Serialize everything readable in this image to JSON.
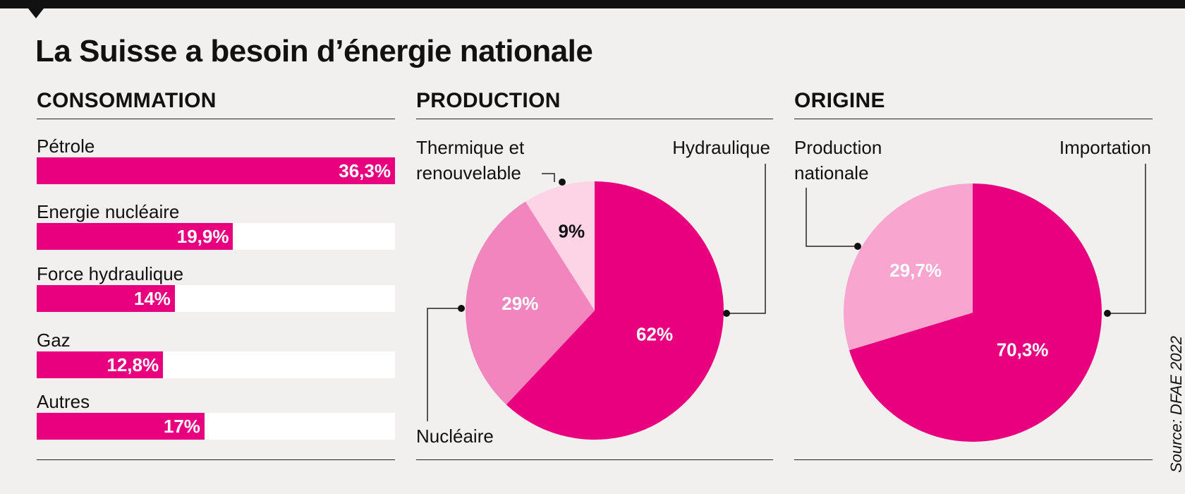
{
  "title": "La Suisse a besoin d’énergie nationale",
  "source": "Source: DFAE 2022",
  "colors": {
    "main": "#e8007e",
    "medium": "#f185bd",
    "light": "#fdd3e6",
    "origin_light": "#f8a5cf"
  },
  "chart_data": [
    {
      "type": "bar",
      "title": "CONSOMMATION",
      "categories": [
        "Pétrole",
        "Energie nucléaire",
        "Force hydraulique",
        "Gaz",
        "Autres"
      ],
      "values": [
        36.3,
        19.9,
        14,
        12.8,
        17
      ],
      "value_labels": [
        "36,3%",
        "19,9%",
        "14%",
        "12,8%",
        "17%"
      ],
      "xlim": [
        0,
        36.3
      ],
      "grid": false
    },
    {
      "type": "pie",
      "title": "PRODUCTION",
      "categories": [
        "Hydraulique",
        "Nucléaire",
        "Thermique et renouvelable"
      ],
      "values": [
        62,
        29,
        9
      ],
      "value_labels": [
        "62%",
        "29%",
        "9%"
      ]
    },
    {
      "type": "pie",
      "title": "ORIGINE",
      "categories": [
        "Importation",
        "Production nationale"
      ],
      "values": [
        70.3,
        29.7
      ],
      "value_labels": [
        "70,3%",
        "29,7%"
      ]
    }
  ]
}
